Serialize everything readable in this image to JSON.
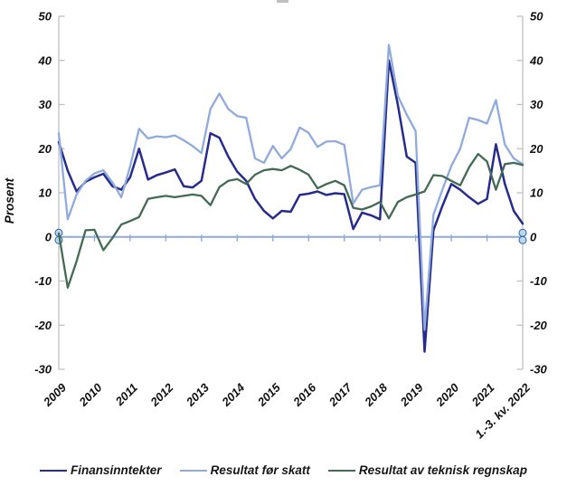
{
  "figure": {
    "background": "#ffffff",
    "axis_color": "#c0c0c0",
    "tick_label_color": "#111111"
  },
  "chart_data": {
    "type": "line",
    "title": "",
    "ylabel": "Prosent",
    "xlabel": "",
    "ylim": [
      -30,
      50
    ],
    "y_ticks": [
      50,
      40,
      30,
      20,
      10,
      0,
      -10,
      -20,
      -30
    ],
    "x_tick_labels": [
      "2009",
      "2010",
      "2011",
      "2012",
      "2013",
      "2014",
      "2015",
      "2016",
      "2017",
      "2018",
      "2019",
      "2020",
      "2021",
      "1.-3. kv. 2022"
    ],
    "points_per_year": 4,
    "grid": false,
    "legend_position": "bottom",
    "zero_line": {
      "value": 0,
      "color": "#8faadc",
      "handle_fill": "#bdd7ee",
      "handle_stroke": "#2e5fa3"
    },
    "series": [
      {
        "name": "Finansinntekter",
        "color": "#272c8c",
        "values": [
          21.5,
          15,
          10.3,
          12.5,
          13.5,
          14.3,
          11.5,
          10.7,
          13.5,
          20,
          13,
          14,
          14.6,
          15.3,
          11.5,
          11.2,
          12.7,
          23.5,
          22.5,
          18.2,
          14.8,
          12.7,
          8.6,
          5.9,
          4.2,
          5.9,
          5.7,
          9.5,
          9.8,
          10.3,
          9.5,
          9.9,
          9.7,
          1.8,
          5.5,
          4.9,
          4,
          40,
          30,
          18.2,
          16.8,
          -26,
          1.5,
          7,
          12,
          10.7,
          9,
          7.5,
          8.6,
          21,
          12,
          5.9,
          3
        ]
      },
      {
        "name": "Resultat før skatt",
        "color": "#8faadc",
        "values": [
          23.5,
          4,
          9.6,
          12.7,
          14.4,
          15.1,
          12.4,
          9,
          16,
          24.5,
          22.3,
          22.8,
          22.6,
          23,
          21.9,
          20.6,
          19,
          29,
          32.5,
          29,
          27.4,
          27,
          17.8,
          16.8,
          20.6,
          17.8,
          19.9,
          24.8,
          23.6,
          20.4,
          21.6,
          21.7,
          20.9,
          7.6,
          10.7,
          11.3,
          11.7,
          43.5,
          32,
          27.7,
          24,
          -21,
          5,
          10.7,
          16.1,
          20,
          27,
          26.5,
          25.7,
          31,
          20.9,
          17.8,
          16.5
        ]
      },
      {
        "name": "Resultat av teknisk regnskap",
        "color": "#426b55",
        "values": [
          0.8,
          -11.5,
          -5.5,
          1.5,
          1.6,
          -3,
          -0.3,
          2.8,
          3.6,
          4.5,
          8.6,
          9,
          9.3,
          9,
          9.3,
          9.6,
          9.3,
          7.2,
          11.3,
          12.7,
          13.1,
          12,
          14.1,
          15.1,
          15.4,
          15.1,
          16.1,
          15.2,
          14.1,
          11,
          12,
          12.7,
          11.7,
          6.6,
          6.2,
          6.9,
          7.9,
          4.2,
          7.9,
          9,
          9.6,
          10.3,
          14,
          13.8,
          12.7,
          11.7,
          15.8,
          18.8,
          17.1,
          10.7,
          16.5,
          16.8,
          16.3
        ]
      }
    ]
  }
}
